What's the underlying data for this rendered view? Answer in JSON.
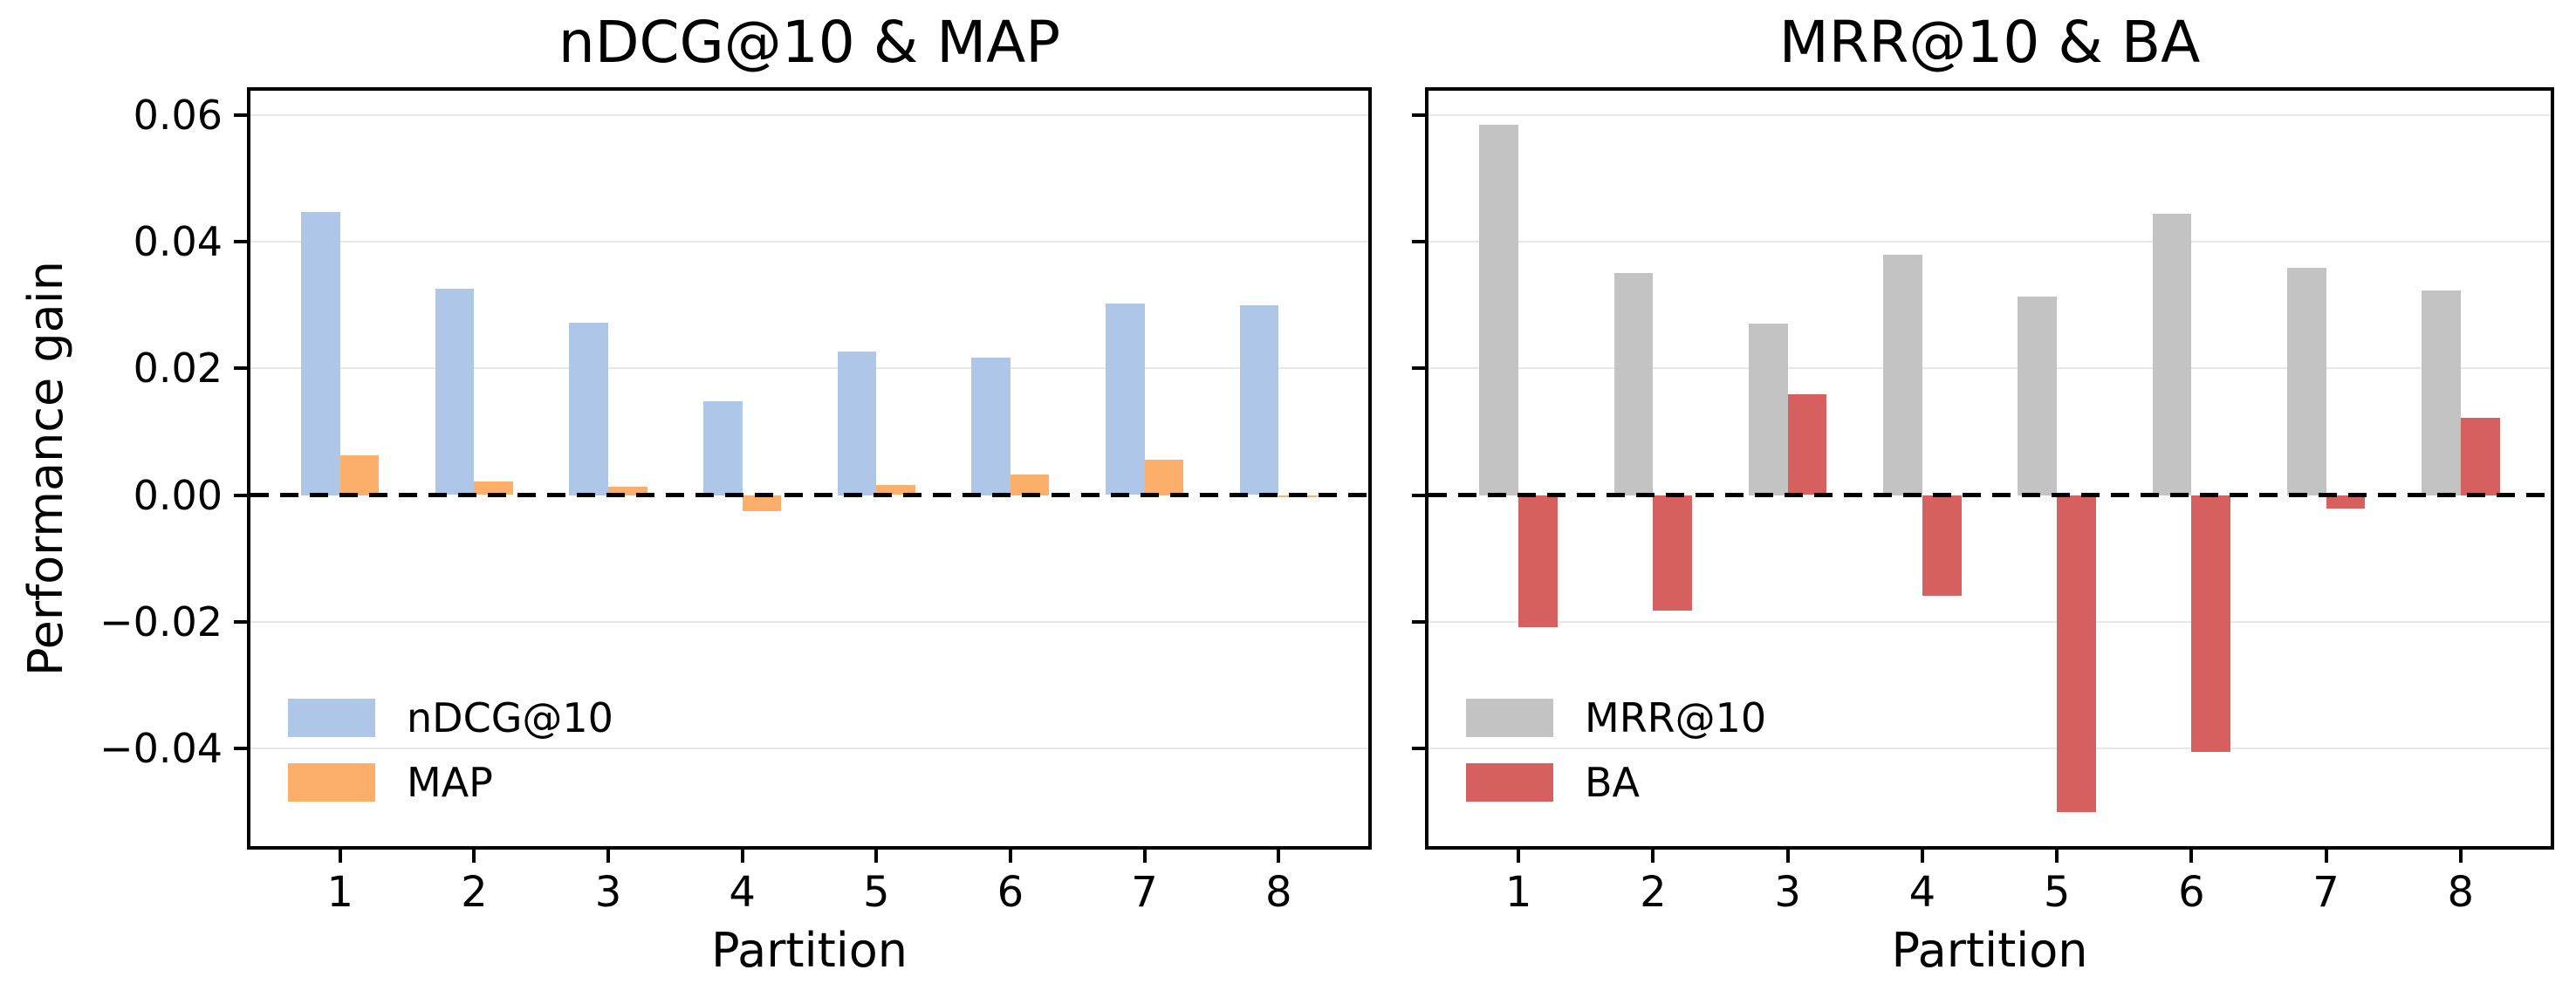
{
  "figure": {
    "ylabel": "Performance gain",
    "background": "#ffffff",
    "spine_color": "#000000",
    "grid_color": "#e8e8e8"
  },
  "chart_data": [
    {
      "type": "bar",
      "title": "nDCG@10 & MAP",
      "xlabel": "Partition",
      "ylabel": "Performance gain",
      "categories": [
        "1",
        "2",
        "3",
        "4",
        "5",
        "6",
        "7",
        "8"
      ],
      "series": [
        {
          "name": "nDCG@10",
          "color": "#aec7e8",
          "values": [
            0.0447,
            0.0326,
            0.0272,
            0.0148,
            0.0226,
            0.0217,
            0.0302,
            0.03
          ]
        },
        {
          "name": "MAP",
          "color": "#fcae6b",
          "values": [
            0.0062,
            0.0022,
            0.0013,
            -0.0025,
            0.0016,
            0.0033,
            0.0056,
            -0.0003
          ]
        }
      ],
      "ylim": [
        -0.0554,
        0.0638
      ],
      "yticks": [
        0.06,
        0.04,
        0.02,
        0.0,
        -0.02,
        -0.04
      ],
      "show_ytick_labels": true,
      "grid": true,
      "zero_line": "dashed-black",
      "legend_position": "lower-left"
    },
    {
      "type": "bar",
      "title": "MRR@10 & BA",
      "xlabel": "Partition",
      "categories": [
        "1",
        "2",
        "3",
        "4",
        "5",
        "6",
        "7",
        "8"
      ],
      "series": [
        {
          "name": "MRR@10",
          "color": "#c3c3c3",
          "values": [
            0.0584,
            0.0351,
            0.027,
            0.0379,
            0.0313,
            0.0444,
            0.0358,
            0.0323
          ]
        },
        {
          "name": "BA",
          "color": "#d65f5f",
          "values": [
            -0.0209,
            -0.0183,
            0.0159,
            -0.0159,
            -0.05,
            -0.0405,
            -0.0021,
            0.0122
          ]
        }
      ],
      "ylim": [
        -0.0554,
        0.0638
      ],
      "yticks": [
        0.06,
        0.04,
        0.02,
        0.0,
        -0.02,
        -0.04
      ],
      "show_ytick_labels": false,
      "grid": true,
      "zero_line": "dashed-black",
      "legend_position": "lower-left"
    }
  ]
}
